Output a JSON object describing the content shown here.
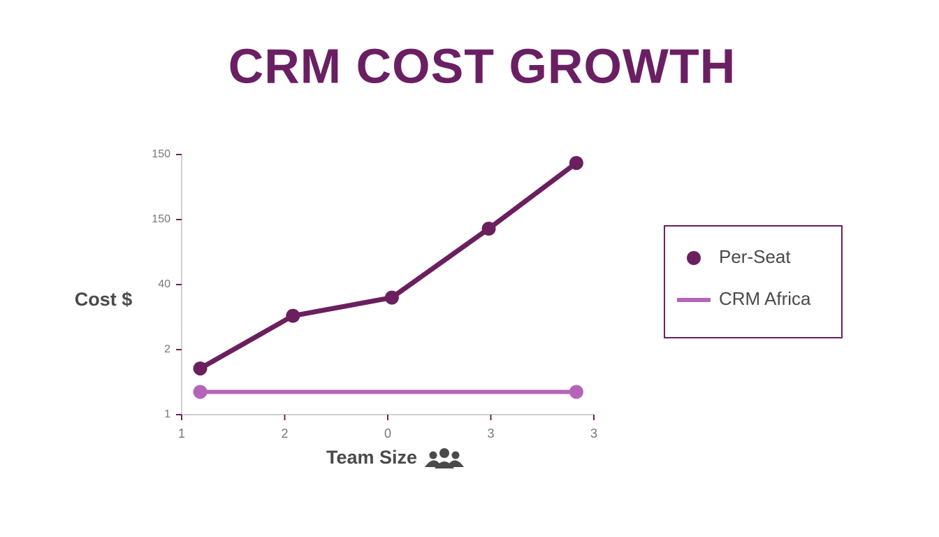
{
  "chart_data": {
    "type": "line",
    "title": "CRM COST GROWTH",
    "x_label": "Team Size",
    "y_label": "Cost $",
    "xlim": [
      0,
      4
    ],
    "ylim": [
      0,
      4
    ],
    "xticks": [
      {
        "value": 0,
        "label": "1"
      },
      {
        "value": 1,
        "label": "2"
      },
      {
        "value": 2,
        "label": "0"
      },
      {
        "value": 3,
        "label": "3"
      },
      {
        "value": 4,
        "label": "3"
      }
    ],
    "yticks": [
      {
        "value": 0,
        "label": "1"
      },
      {
        "value": 1,
        "label": "2"
      },
      {
        "value": 2,
        "label": "40"
      },
      {
        "value": 3,
        "label": "150"
      },
      {
        "value": 4,
        "label": "150"
      }
    ],
    "legend": "right",
    "series": [
      {
        "name": "Per-Seat",
        "color": "#6b1f5f",
        "marker": "dot",
        "x": [
          0.18,
          1.08,
          2.04,
          2.98,
          3.83
        ],
        "values": [
          0.71,
          1.52,
          1.8,
          2.86,
          3.87
        ]
      },
      {
        "name": "CRM Africa",
        "color": "#b565b8",
        "marker": "line",
        "x": [
          0.18,
          3.83
        ],
        "values": [
          0.35,
          0.35
        ]
      }
    ]
  }
}
